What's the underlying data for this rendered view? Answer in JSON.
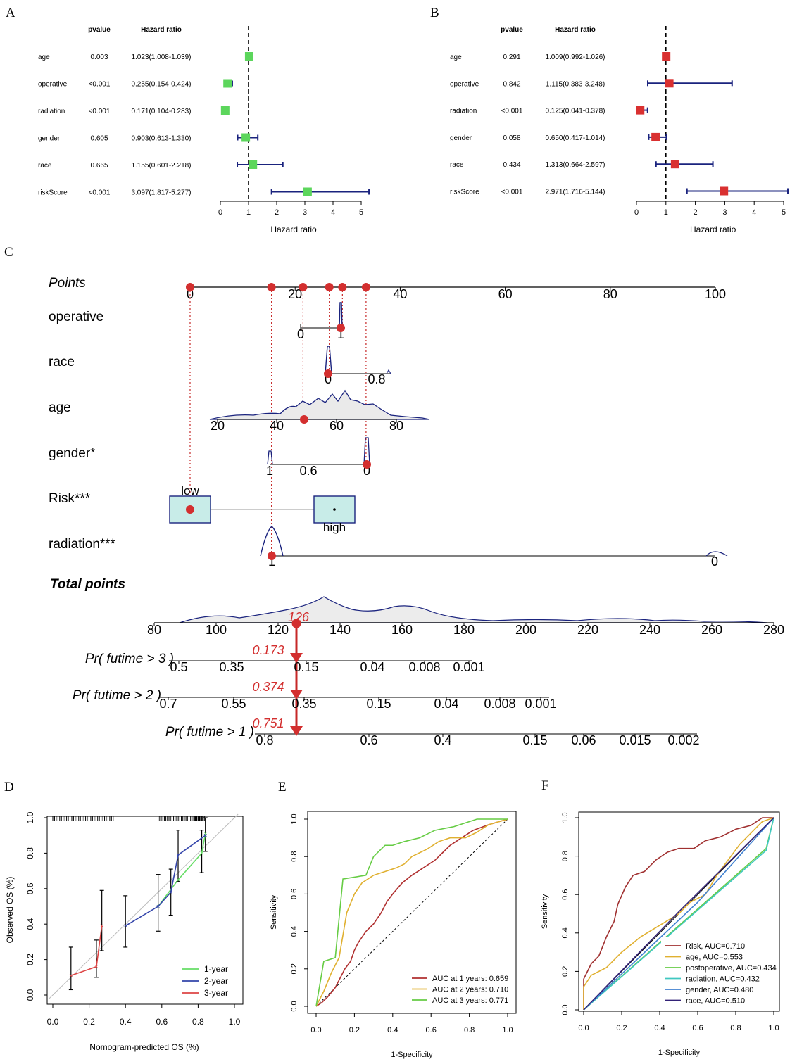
{
  "panels": {
    "A": "A",
    "B": "B",
    "C": "C",
    "D": "D",
    "E": "E",
    "F": "F"
  },
  "colors": {
    "green_box": "#5cd65c",
    "red_box": "#d93030",
    "navy": "#1a237e",
    "dot_red": "#d32f2f",
    "dashed_red": "#c62828"
  },
  "chart_data": [
    {
      "panel": "A",
      "type": "forest",
      "col_pvalue": "pvalue",
      "col_hr": "Hazard ratio",
      "xlabel": "Hazard ratio",
      "xlim": [
        0,
        5.3
      ],
      "ticks": [
        0,
        1,
        2,
        3,
        4,
        5
      ],
      "ref_line": 1,
      "rows": [
        {
          "name": "age",
          "pvalue": "0.003",
          "hr_text": "1.023(1.008-1.039)",
          "hr": 1.023,
          "lo": 1.008,
          "hi": 1.039
        },
        {
          "name": "operative",
          "pvalue": "<0.001",
          "hr_text": "0.255(0.154-0.424)",
          "hr": 0.255,
          "lo": 0.154,
          "hi": 0.424
        },
        {
          "name": "radiation",
          "pvalue": "<0.001",
          "hr_text": "0.171(0.104-0.283)",
          "hr": 0.171,
          "lo": 0.104,
          "hi": 0.283
        },
        {
          "name": "gender",
          "pvalue": "0.605",
          "hr_text": "0.903(0.613-1.330)",
          "hr": 0.903,
          "lo": 0.613,
          "hi": 1.33
        },
        {
          "name": "race",
          "pvalue": "0.665",
          "hr_text": "1.155(0.601-2.218)",
          "hr": 1.155,
          "lo": 0.601,
          "hi": 2.218
        },
        {
          "name": "riskScore",
          "pvalue": "<0.001",
          "hr_text": "3.097(1.817-5.277)",
          "hr": 3.097,
          "lo": 1.817,
          "hi": 5.277
        }
      ]
    },
    {
      "panel": "B",
      "type": "forest",
      "col_pvalue": "pvalue",
      "col_hr": "Hazard ratio",
      "xlabel": "Hazard ratio",
      "xlim": [
        0,
        5.2
      ],
      "ticks": [
        0,
        1,
        2,
        3,
        4,
        5
      ],
      "ref_line": 1,
      "rows": [
        {
          "name": "age",
          "pvalue": "0.291",
          "hr_text": "1.009(0.992-1.026)",
          "hr": 1.009,
          "lo": 0.992,
          "hi": 1.026
        },
        {
          "name": "operative",
          "pvalue": "0.842",
          "hr_text": "1.115(0.383-3.248)",
          "hr": 1.115,
          "lo": 0.383,
          "hi": 3.248
        },
        {
          "name": "radiation",
          "pvalue": "<0.001",
          "hr_text": "0.125(0.041-0.378)",
          "hr": 0.125,
          "lo": 0.041,
          "hi": 0.378
        },
        {
          "name": "gender",
          "pvalue": "0.058",
          "hr_text": "0.650(0.417-1.014)",
          "hr": 0.65,
          "lo": 0.417,
          "hi": 1.014
        },
        {
          "name": "race",
          "pvalue": "0.434",
          "hr_text": "1.313(0.664-2.597)",
          "hr": 1.313,
          "lo": 0.664,
          "hi": 2.597
        },
        {
          "name": "riskScore",
          "pvalue": "<0.001",
          "hr_text": "2.971(1.716-5.144)",
          "hr": 2.971,
          "lo": 1.716,
          "hi": 5.144
        }
      ]
    },
    {
      "panel": "C",
      "type": "nomogram",
      "points_label": "Points",
      "points_ticks": [
        0,
        20,
        40,
        60,
        80,
        100
      ],
      "selected_points": [
        0,
        15.5,
        21.5,
        26.5,
        29,
        33.5
      ],
      "vars": [
        {
          "label": "operative",
          "ticks": [
            "0",
            "1"
          ]
        },
        {
          "label": "race",
          "ticks": [
            "0",
            "0.8"
          ]
        },
        {
          "label": "age",
          "ticks": [
            "20",
            "40",
            "60",
            "80"
          ]
        },
        {
          "label": "gender*",
          "ticks": [
            "1",
            "0.6",
            "0"
          ]
        },
        {
          "label": "Risk***",
          "ticks": [
            "low",
            "high"
          ]
        },
        {
          "label": "radiation***",
          "ticks": [
            "1",
            "0"
          ]
        }
      ],
      "total_label": "Total points",
      "total_ticks": [
        80,
        100,
        120,
        140,
        160,
        180,
        200,
        220,
        240,
        260,
        280
      ],
      "total_value": "126",
      "probs": [
        {
          "label": "Pr( futime > 3 )",
          "value": "0.173",
          "ticks": [
            "0.5",
            "0.35",
            "0.15",
            "0.04",
            "0.008",
            "0.001"
          ]
        },
        {
          "label": "Pr( futime > 2 )",
          "value": "0.374",
          "ticks": [
            "0.7",
            "0.55",
            "0.35",
            "0.15",
            "0.04",
            "0.008",
            "0.001"
          ]
        },
        {
          "label": "Pr( futime > 1 )",
          "value": "0.751",
          "ticks": [
            "0.8",
            "0.6",
            "0.4",
            "0.15",
            "0.06",
            "0.015",
            "0.002"
          ]
        }
      ]
    },
    {
      "panel": "D",
      "type": "calibration",
      "xlabel": "Nomogram-predicted OS (%)",
      "ylabel": "Observed OS (%)",
      "xlim": [
        -0.02,
        1.02
      ],
      "ylim": [
        -0.02,
        1.02
      ],
      "ticks": [
        "0.0",
        "0.2",
        "0.4",
        "0.6",
        "0.8",
        "1.0"
      ],
      "series": [
        {
          "name": "1-year",
          "color": "#66dd66",
          "points": [
            [
              0.58,
              0.5
            ],
            [
              0.69,
              0.65
            ],
            [
              0.82,
              0.8
            ],
            [
              0.84,
              0.91
            ]
          ]
        },
        {
          "name": "2-year",
          "color": "#3344aa",
          "points": [
            [
              0.4,
              0.39
            ],
            [
              0.58,
              0.5
            ],
            [
              0.65,
              0.58
            ],
            [
              0.69,
              0.79
            ],
            [
              0.84,
              0.9
            ]
          ]
        },
        {
          "name": "3-year",
          "color": "#dd4444",
          "points": [
            [
              0.1,
              0.11
            ],
            [
              0.24,
              0.16
            ],
            [
              0.27,
              0.39
            ]
          ]
        }
      ],
      "errorbars": [
        {
          "x": 0.1,
          "y": 0.11,
          "lo": 0.03,
          "hi": 0.27
        },
        {
          "x": 0.24,
          "y": 0.16,
          "lo": 0.1,
          "hi": 0.31
        },
        {
          "x": 0.27,
          "y": 0.39,
          "lo": 0.25,
          "hi": 0.59
        },
        {
          "x": 0.4,
          "y": 0.39,
          "lo": 0.27,
          "hi": 0.56
        },
        {
          "x": 0.58,
          "y": 0.5,
          "lo": 0.36,
          "hi": 0.68
        },
        {
          "x": 0.65,
          "y": 0.58,
          "lo": 0.45,
          "hi": 0.71
        },
        {
          "x": 0.69,
          "y": 0.79,
          "lo": 0.64,
          "hi": 0.93
        },
        {
          "x": 0.82,
          "y": 0.8,
          "lo": 0.69,
          "hi": 0.93
        },
        {
          "x": 0.84,
          "y": 0.91,
          "lo": 0.81,
          "hi": 1.0
        }
      ]
    },
    {
      "panel": "E",
      "type": "roc",
      "xlabel": "1-Specificity",
      "ylabel": "Sensitivity",
      "ticks": [
        "0.0",
        "0.2",
        "0.4",
        "0.6",
        "0.8",
        "1.0"
      ],
      "series": [
        {
          "name": "AUC at 1 years: 0.659",
          "color": "#b03030",
          "points": [
            [
              0,
              0
            ],
            [
              0.03,
              0.02
            ],
            [
              0.06,
              0.05
            ],
            [
              0.1,
              0.1
            ],
            [
              0.12,
              0.14
            ],
            [
              0.15,
              0.2
            ],
            [
              0.18,
              0.24
            ],
            [
              0.2,
              0.3
            ],
            [
              0.22,
              0.34
            ],
            [
              0.26,
              0.4
            ],
            [
              0.3,
              0.44
            ],
            [
              0.34,
              0.5
            ],
            [
              0.37,
              0.56
            ],
            [
              0.4,
              0.6
            ],
            [
              0.45,
              0.66
            ],
            [
              0.5,
              0.7
            ],
            [
              0.56,
              0.74
            ],
            [
              0.62,
              0.78
            ],
            [
              0.66,
              0.82
            ],
            [
              0.7,
              0.86
            ],
            [
              0.76,
              0.9
            ],
            [
              0.82,
              0.94
            ],
            [
              0.9,
              0.97
            ],
            [
              1,
              1
            ]
          ]
        },
        {
          "name": "AUC at 2 years: 0.710",
          "color": "#e0b030",
          "points": [
            [
              0,
              0
            ],
            [
              0.04,
              0.08
            ],
            [
              0.08,
              0.18
            ],
            [
              0.12,
              0.26
            ],
            [
              0.16,
              0.5
            ],
            [
              0.2,
              0.6
            ],
            [
              0.24,
              0.66
            ],
            [
              0.3,
              0.7
            ],
            [
              0.36,
              0.72
            ],
            [
              0.42,
              0.74
            ],
            [
              0.46,
              0.76
            ],
            [
              0.5,
              0.8
            ],
            [
              0.58,
              0.84
            ],
            [
              0.64,
              0.88
            ],
            [
              0.7,
              0.9
            ],
            [
              0.78,
              0.9
            ],
            [
              0.84,
              0.93
            ],
            [
              0.9,
              0.97
            ],
            [
              1,
              1
            ]
          ]
        },
        {
          "name": "AUC at 3 years: 0.771",
          "color": "#66cc44",
          "points": [
            [
              0,
              0
            ],
            [
              0.02,
              0.12
            ],
            [
              0.04,
              0.24
            ],
            [
              0.1,
              0.26
            ],
            [
              0.14,
              0.68
            ],
            [
              0.26,
              0.7
            ],
            [
              0.3,
              0.8
            ],
            [
              0.36,
              0.86
            ],
            [
              0.4,
              0.86
            ],
            [
              0.46,
              0.88
            ],
            [
              0.54,
              0.9
            ],
            [
              0.62,
              0.94
            ],
            [
              0.72,
              0.96
            ],
            [
              0.84,
              1
            ],
            [
              1,
              1
            ]
          ]
        }
      ]
    },
    {
      "panel": "F",
      "type": "roc",
      "xlabel": "1-Specificity",
      "ylabel": "Sensitivity",
      "ticks": [
        "0.0",
        "0.2",
        "0.4",
        "0.6",
        "0.8",
        "1.0"
      ],
      "series": [
        {
          "name": "Risk, AUC=0.710",
          "color": "#a03030",
          "points": [
            [
              0,
              0
            ],
            [
              0,
              0.16
            ],
            [
              0.04,
              0.24
            ],
            [
              0.08,
              0.28
            ],
            [
              0.12,
              0.38
            ],
            [
              0.16,
              0.46
            ],
            [
              0.18,
              0.55
            ],
            [
              0.22,
              0.64
            ],
            [
              0.26,
              0.7
            ],
            [
              0.32,
              0.72
            ],
            [
              0.38,
              0.78
            ],
            [
              0.44,
              0.82
            ],
            [
              0.5,
              0.84
            ],
            [
              0.58,
              0.84
            ],
            [
              0.64,
              0.88
            ],
            [
              0.72,
              0.9
            ],
            [
              0.8,
              0.94
            ],
            [
              0.88,
              0.96
            ],
            [
              0.94,
              1
            ],
            [
              1,
              1
            ]
          ]
        },
        {
          "name": "age, AUC=0.553",
          "color": "#e0b030",
          "points": [
            [
              0,
              0
            ],
            [
              0,
              0.12
            ],
            [
              0.04,
              0.18
            ],
            [
              0.12,
              0.22
            ],
            [
              0.2,
              0.3
            ],
            [
              0.3,
              0.38
            ],
            [
              0.4,
              0.44
            ],
            [
              0.5,
              0.5
            ],
            [
              0.56,
              0.56
            ],
            [
              0.64,
              0.6
            ],
            [
              0.7,
              0.7
            ],
            [
              0.76,
              0.78
            ],
            [
              0.82,
              0.86
            ],
            [
              0.88,
              0.92
            ],
            [
              0.94,
              0.98
            ],
            [
              1,
              1
            ]
          ]
        },
        {
          "name": "postoperative, AUC=0.434",
          "color": "#66cc44",
          "points": [
            [
              0,
              0
            ],
            [
              0.96,
              0.84
            ],
            [
              1,
              1
            ]
          ]
        },
        {
          "name": "radiation, AUC=0.432",
          "color": "#40c8c0",
          "points": [
            [
              0,
              0
            ],
            [
              0.96,
              0.83
            ],
            [
              1,
              1
            ]
          ]
        },
        {
          "name": "gender, AUC=0.480",
          "color": "#4080d0",
          "points": [
            [
              0,
              0
            ],
            [
              0.6,
              0.56
            ],
            [
              1,
              1
            ]
          ]
        },
        {
          "name": "race, AUC=0.510",
          "color": "#332277",
          "points": [
            [
              0,
              0
            ],
            [
              0.5,
              0.51
            ],
            [
              1,
              1
            ]
          ]
        }
      ]
    }
  ]
}
